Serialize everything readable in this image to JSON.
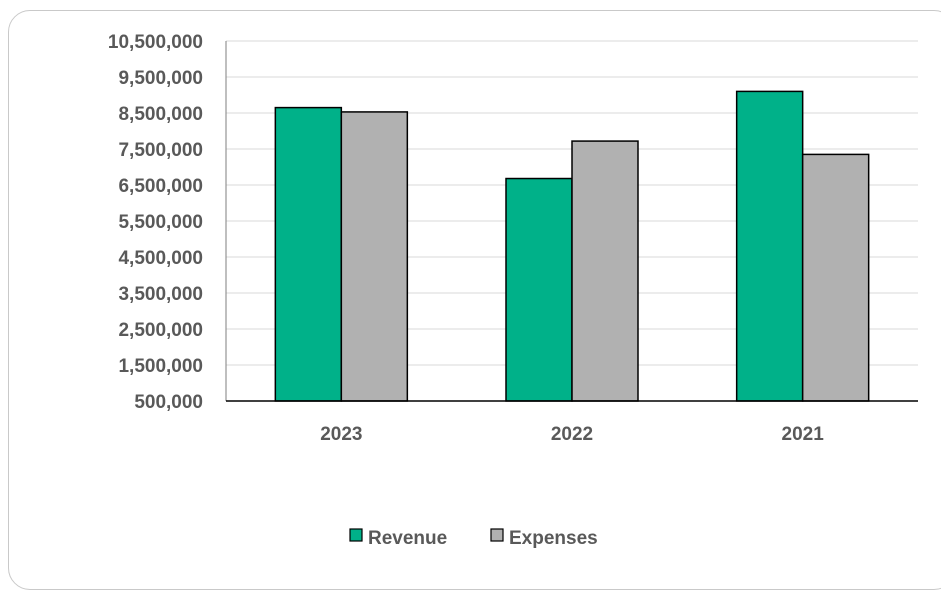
{
  "chart_data": {
    "type": "bar",
    "categories": [
      "2023",
      "2022",
      "2021"
    ],
    "series": [
      {
        "name": "Revenue",
        "color": "#00b189",
        "values": [
          8650000,
          6680000,
          9100000
        ]
      },
      {
        "name": "Expenses",
        "color": "#b1b1b1",
        "values": [
          8530000,
          7720000,
          7350000
        ]
      }
    ],
    "y_ticks": [
      "10,500,000",
      "9,500,000",
      "8,500,000",
      "7,500,000",
      "6,500,000",
      "5,500,000",
      "4,500,000",
      "3,500,000",
      "2,500,000",
      "1,500,000",
      "500,000"
    ],
    "ylim": [
      500000,
      10500000
    ],
    "grid": true,
    "legend_position": "bottom"
  }
}
